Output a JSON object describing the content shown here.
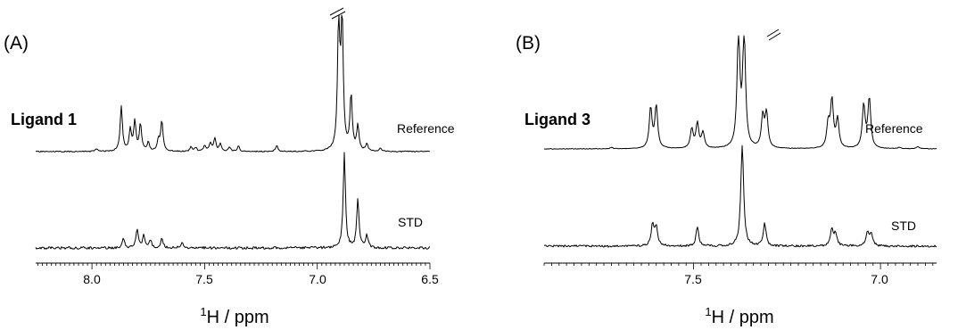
{
  "chart_data": [
    {
      "type": "line",
      "panel_label": "(A)",
      "ligand_label": "Ligand 1",
      "x_axis": {
        "label_base": "H / ppm",
        "label_superscript": "1",
        "range": [
          8.25,
          6.5
        ],
        "ticks": [
          8.0,
          7.5,
          7.0,
          6.5
        ],
        "tick_labels": [
          "8.0",
          "7.5",
          "7.0",
          "6.5"
        ],
        "reversed": true
      },
      "series": [
        {
          "name": "Reference",
          "peaks": [
            {
              "ppm": 7.98,
              "height": 0.03
            },
            {
              "ppm": 7.87,
              "height": 0.51
            },
            {
              "ppm": 7.83,
              "height": 0.24
            },
            {
              "ppm": 7.81,
              "height": 0.33
            },
            {
              "ppm": 7.785,
              "height": 0.3
            },
            {
              "ppm": 7.75,
              "height": 0.1
            },
            {
              "ppm": 7.705,
              "height": 0.12
            },
            {
              "ppm": 7.69,
              "height": 0.34
            },
            {
              "ppm": 7.56,
              "height": 0.05
            },
            {
              "ppm": 7.54,
              "height": 0.04
            },
            {
              "ppm": 7.5,
              "height": 0.06
            },
            {
              "ppm": 7.475,
              "height": 0.09
            },
            {
              "ppm": 7.455,
              "height": 0.15
            },
            {
              "ppm": 7.43,
              "height": 0.08
            },
            {
              "ppm": 7.39,
              "height": 0.05
            },
            {
              "ppm": 7.35,
              "height": 0.06
            },
            {
              "ppm": 7.18,
              "height": 0.07
            },
            {
              "ppm": 6.905,
              "height": 1.45
            },
            {
              "ppm": 6.89,
              "height": 1.45
            },
            {
              "ppm": 6.85,
              "height": 0.62
            },
            {
              "ppm": 6.82,
              "height": 0.28
            },
            {
              "ppm": 6.78,
              "height": 0.08
            },
            {
              "ppm": 6.72,
              "height": 0.03
            }
          ]
        },
        {
          "name": "STD",
          "peaks": [
            {
              "ppm": 7.86,
              "height": 0.1
            },
            {
              "ppm": 7.8,
              "height": 0.2
            },
            {
              "ppm": 7.77,
              "height": 0.13
            },
            {
              "ppm": 7.74,
              "height": 0.08
            },
            {
              "ppm": 7.69,
              "height": 0.11
            },
            {
              "ppm": 7.6,
              "height": 0.06
            },
            {
              "ppm": 6.88,
              "height": 1.0
            },
            {
              "ppm": 6.82,
              "height": 0.52
            },
            {
              "ppm": 6.78,
              "height": 0.13
            }
          ]
        }
      ]
    },
    {
      "type": "line",
      "panel_label": "(B)",
      "ligand_label": "Ligand 3",
      "x_axis": {
        "label_base": "H / ppm",
        "label_superscript": "1",
        "range": [
          7.9,
          6.85
        ],
        "ticks": [
          7.5,
          7.0
        ],
        "tick_labels": [
          "7.5",
          "7.0"
        ],
        "reversed": true
      },
      "series": [
        {
          "name": "Reference",
          "peaks": [
            {
              "ppm": 7.72,
              "height": 0.02
            },
            {
              "ppm": 7.615,
              "height": 0.56
            },
            {
              "ppm": 7.6,
              "height": 0.59
            },
            {
              "ppm": 7.505,
              "height": 0.27
            },
            {
              "ppm": 7.49,
              "height": 0.35
            },
            {
              "ppm": 7.475,
              "height": 0.22
            },
            {
              "ppm": 7.38,
              "height": 1.6
            },
            {
              "ppm": 7.365,
              "height": 1.6
            },
            {
              "ppm": 7.315,
              "height": 0.44
            },
            {
              "ppm": 7.305,
              "height": 0.48
            },
            {
              "ppm": 7.14,
              "height": 0.34
            },
            {
              "ppm": 7.13,
              "height": 0.66
            },
            {
              "ppm": 7.115,
              "height": 0.4
            },
            {
              "ppm": 7.045,
              "height": 0.6
            },
            {
              "ppm": 7.03,
              "height": 0.7
            },
            {
              "ppm": 6.95,
              "height": 0.02
            },
            {
              "ppm": 6.9,
              "height": 0.03
            }
          ]
        },
        {
          "name": "STD",
          "peaks": [
            {
              "ppm": 7.61,
              "height": 0.2
            },
            {
              "ppm": 7.6,
              "height": 0.19
            },
            {
              "ppm": 7.49,
              "height": 0.18
            },
            {
              "ppm": 7.37,
              "height": 1.0
            },
            {
              "ppm": 7.31,
              "height": 0.22
            },
            {
              "ppm": 7.13,
              "height": 0.16
            },
            {
              "ppm": 7.12,
              "height": 0.12
            },
            {
              "ppm": 7.035,
              "height": 0.14
            },
            {
              "ppm": 7.025,
              "height": 0.12
            }
          ]
        }
      ]
    }
  ]
}
